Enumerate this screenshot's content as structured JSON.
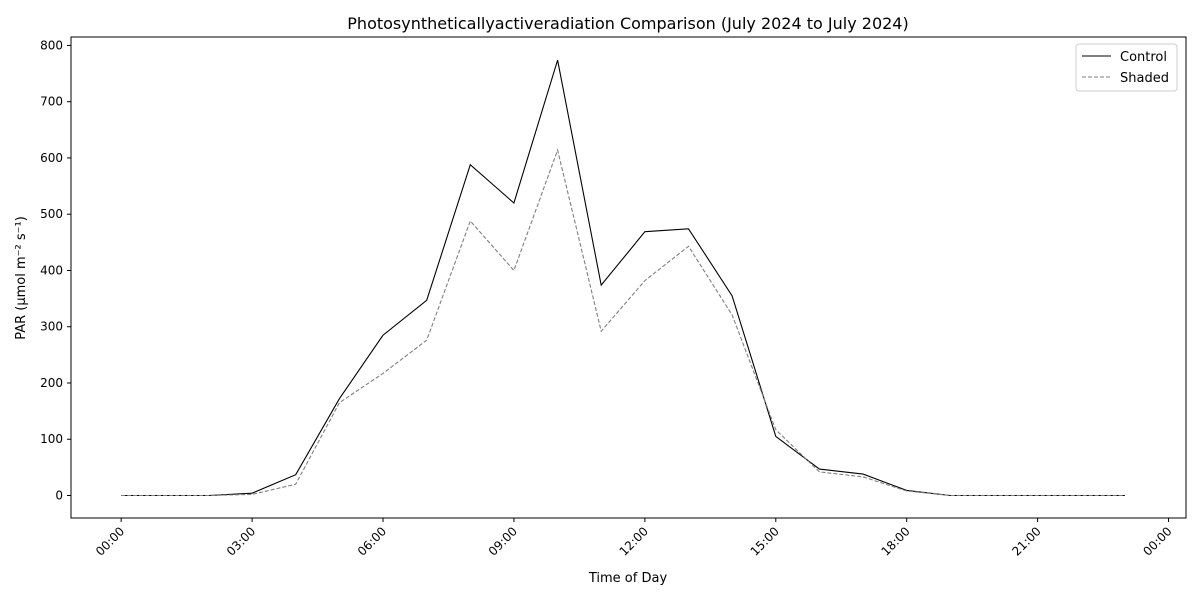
{
  "chart_data": {
    "type": "line",
    "title": "Photosyntheticallyactiveradiation Comparison (July 2024 to July 2024)",
    "xlabel": "Time of Day",
    "ylabel": "PAR (µmol m⁻² s⁻¹)",
    "x": [
      0,
      1,
      2,
      3,
      4,
      5,
      6,
      7,
      8,
      9,
      10,
      11,
      12,
      13,
      14,
      15,
      16,
      17,
      18,
      19,
      20,
      21,
      22,
      23
    ],
    "xlim": [
      -1.15,
      24.4
    ],
    "ylim": [
      -40,
      815
    ],
    "x_ticks": [
      0,
      3,
      6,
      9,
      12,
      15,
      18,
      21,
      24
    ],
    "x_tick_labels": [
      "00:00",
      "03:00",
      "06:00",
      "09:00",
      "12:00",
      "15:00",
      "18:00",
      "21:00",
      "00:00"
    ],
    "y_ticks": [
      0,
      100,
      200,
      300,
      400,
      500,
      600,
      700,
      800
    ],
    "y_tick_labels": [
      "0",
      "100",
      "200",
      "300",
      "400",
      "500",
      "600",
      "700",
      "800"
    ],
    "grid": false,
    "legend_position": "top-right",
    "series": [
      {
        "name": "Control",
        "color": "#000000",
        "style": "solid",
        "values": [
          0,
          0,
          0,
          4,
          37,
          172,
          285,
          347,
          588,
          520,
          774,
          374,
          469,
          474,
          355,
          105,
          47,
          38,
          9,
          0,
          0,
          0,
          0,
          0
        ]
      },
      {
        "name": "Shaded",
        "color": "#808080",
        "style": "dashed",
        "values": [
          0,
          0,
          0,
          2,
          20,
          165,
          217,
          276,
          488,
          400,
          614,
          292,
          382,
          443,
          321,
          117,
          42,
          33,
          8,
          0,
          0,
          0,
          0,
          0
        ]
      }
    ]
  }
}
